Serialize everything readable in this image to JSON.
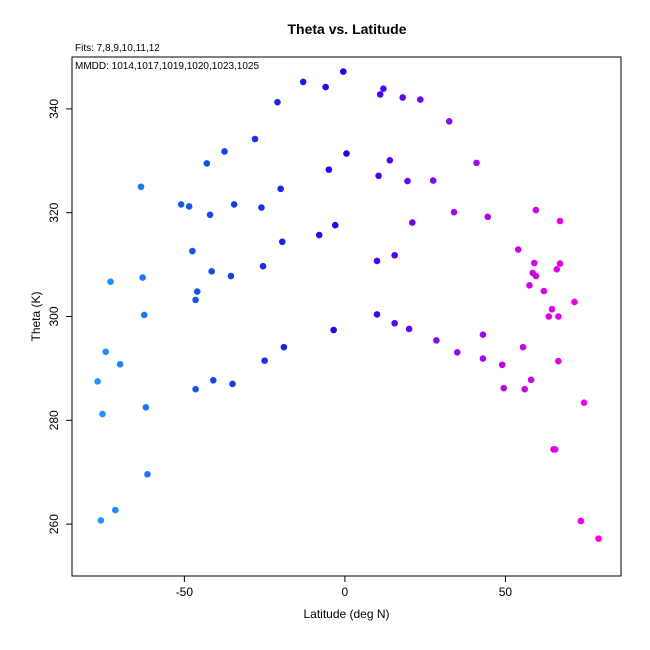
{
  "chart_data": {
    "type": "scatter",
    "title": "Theta vs. Latitude",
    "annotations": {
      "fits": "Fits: 7,8,9,10,11,12",
      "mmdd": "MMDD: 1014,1017,1019,1020,1023,1025"
    },
    "xlabel": "Latitude (deg N)",
    "ylabel": "Theta (K)",
    "xlim": [
      -85,
      86
    ],
    "ylim": [
      250,
      350
    ],
    "xticks": [
      -50,
      0,
      50
    ],
    "yticks": [
      260,
      280,
      300,
      320,
      340
    ],
    "xtick_labels": [
      "-50",
      "0",
      "50"
    ],
    "ytick_labels": [
      "260",
      "280",
      "300",
      "320",
      "340"
    ],
    "grid": false,
    "color_scale": {
      "description": "marker color varies with latitude, light blue at south to magenta at north",
      "stops": [
        {
          "lat": -80,
          "color": "#1f9bff"
        },
        {
          "lat": -40,
          "color": "#1646e6"
        },
        {
          "lat": 0,
          "color": "#2200ee"
        },
        {
          "lat": 30,
          "color": "#8a0af0"
        },
        {
          "lat": 80,
          "color": "#ff00dd"
        }
      ]
    },
    "points": [
      {
        "x": -77,
        "y": 287.5
      },
      {
        "x": -76,
        "y": 260.7
      },
      {
        "x": -75.5,
        "y": 281.2
      },
      {
        "x": -74.5,
        "y": 293.2
      },
      {
        "x": -73,
        "y": 306.7
      },
      {
        "x": -71.5,
        "y": 262.7
      },
      {
        "x": -70,
        "y": 290.8
      },
      {
        "x": -63.5,
        "y": 325.0
      },
      {
        "x": -63,
        "y": 307.5
      },
      {
        "x": -62.5,
        "y": 300.3
      },
      {
        "x": -62,
        "y": 282.5
      },
      {
        "x": -61.5,
        "y": 269.6
      },
      {
        "x": -51,
        "y": 321.6
      },
      {
        "x": -48.5,
        "y": 321.2
      },
      {
        "x": -47.5,
        "y": 312.6
      },
      {
        "x": -46.5,
        "y": 303.2
      },
      {
        "x": -46,
        "y": 304.8
      },
      {
        "x": -46.5,
        "y": 286.0
      },
      {
        "x": -43,
        "y": 329.5
      },
      {
        "x": -42,
        "y": 319.6
      },
      {
        "x": -41.5,
        "y": 308.7
      },
      {
        "x": -41,
        "y": 287.7
      },
      {
        "x": -37.5,
        "y": 331.8
      },
      {
        "x": -35.5,
        "y": 307.8
      },
      {
        "x": -34.5,
        "y": 321.6
      },
      {
        "x": -35,
        "y": 287.0
      },
      {
        "x": -28,
        "y": 334.2
      },
      {
        "x": -26,
        "y": 321.0
      },
      {
        "x": -25.5,
        "y": 309.7
      },
      {
        "x": -25,
        "y": 291.5
      },
      {
        "x": -21,
        "y": 341.3
      },
      {
        "x": -20,
        "y": 324.6
      },
      {
        "x": -19.5,
        "y": 314.4
      },
      {
        "x": -19,
        "y": 294.1
      },
      {
        "x": -13,
        "y": 345.2
      },
      {
        "x": -8,
        "y": 315.7
      },
      {
        "x": -6,
        "y": 344.2
      },
      {
        "x": -5,
        "y": 328.3
      },
      {
        "x": -3.5,
        "y": 297.4
      },
      {
        "x": -3,
        "y": 317.6
      },
      {
        "x": -0.5,
        "y": 347.2
      },
      {
        "x": 0.5,
        "y": 331.4
      },
      {
        "x": 10,
        "y": 310.7
      },
      {
        "x": 10,
        "y": 300.4
      },
      {
        "x": 10.5,
        "y": 327.1
      },
      {
        "x": 11,
        "y": 342.8
      },
      {
        "x": 12,
        "y": 343.9
      },
      {
        "x": 14,
        "y": 330.1
      },
      {
        "x": 15.5,
        "y": 311.8
      },
      {
        "x": 15.5,
        "y": 298.7
      },
      {
        "x": 18,
        "y": 342.2
      },
      {
        "x": 19.5,
        "y": 326.1
      },
      {
        "x": 20,
        "y": 297.6
      },
      {
        "x": 21,
        "y": 318.1
      },
      {
        "x": 23.5,
        "y": 341.8
      },
      {
        "x": 27.5,
        "y": 326.2
      },
      {
        "x": 28.5,
        "y": 295.4
      },
      {
        "x": 32.5,
        "y": 337.6
      },
      {
        "x": 34,
        "y": 320.1
      },
      {
        "x": 35,
        "y": 293.1
      },
      {
        "x": 41,
        "y": 329.6
      },
      {
        "x": 43,
        "y": 296.5
      },
      {
        "x": 43,
        "y": 291.9
      },
      {
        "x": 44.5,
        "y": 319.2
      },
      {
        "x": 49,
        "y": 290.7
      },
      {
        "x": 49.5,
        "y": 286.2
      },
      {
        "x": 54,
        "y": 312.9
      },
      {
        "x": 55.5,
        "y": 294.1
      },
      {
        "x": 56,
        "y": 286.0
      },
      {
        "x": 57.5,
        "y": 306.0
      },
      {
        "x": 58,
        "y": 287.8
      },
      {
        "x": 58.5,
        "y": 308.4
      },
      {
        "x": 59,
        "y": 310.3
      },
      {
        "x": 59.5,
        "y": 320.5
      },
      {
        "x": 59.5,
        "y": 307.8
      },
      {
        "x": 62,
        "y": 304.9
      },
      {
        "x": 63.5,
        "y": 300.0
      },
      {
        "x": 64.5,
        "y": 301.4
      },
      {
        "x": 65,
        "y": 274.4
      },
      {
        "x": 65.5,
        "y": 274.4
      },
      {
        "x": 66,
        "y": 309.1
      },
      {
        "x": 66.5,
        "y": 291.4
      },
      {
        "x": 66.5,
        "y": 300.0
      },
      {
        "x": 67,
        "y": 318.4
      },
      {
        "x": 67,
        "y": 310.2
      },
      {
        "x": 71.5,
        "y": 302.8
      },
      {
        "x": 73.5,
        "y": 260.6
      },
      {
        "x": 74.5,
        "y": 283.4
      },
      {
        "x": 79,
        "y": 257.2
      }
    ]
  }
}
